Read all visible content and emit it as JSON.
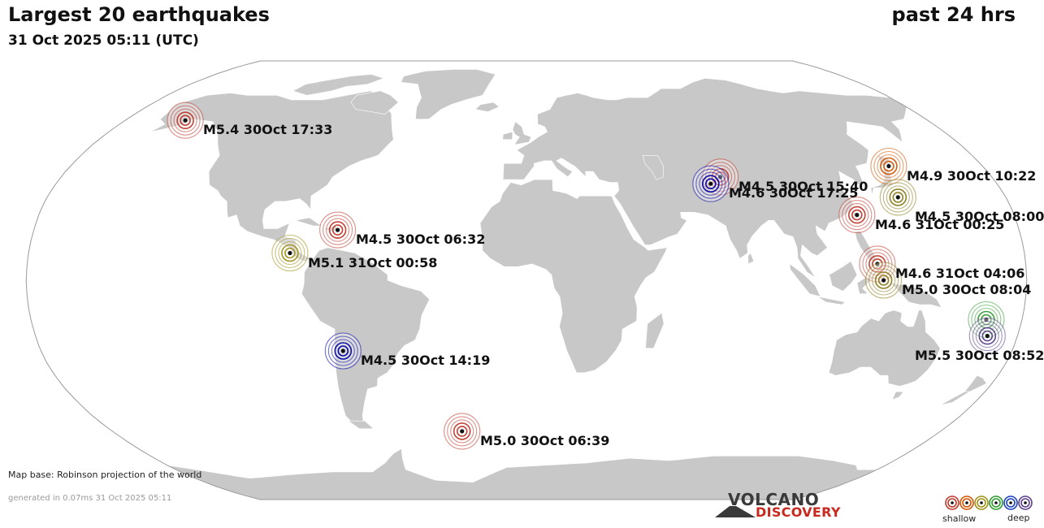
{
  "header": {
    "title": "Largest 20 earthquakes",
    "datetime": "31 Oct 2025 05:11 (UTC)",
    "period": "past 24 hrs"
  },
  "quakes": [
    {
      "label": "M5.4 30Oct 17:33",
      "lat": 59.5,
      "lon": -153.0,
      "color": "#c0392b"
    },
    {
      "label": "M4.9 30Oct 10:22",
      "lat": 42.0,
      "lon": 143.0,
      "color": "#d35400"
    },
    {
      "label": "M4.5 30Oct 15:40",
      "lat": 38.0,
      "lon": 75.0,
      "color": "#c0392b"
    },
    {
      "label": "M4.6 30Oct 17:25",
      "lat": 35.5,
      "lon": 70.5,
      "color": "#0000aa"
    },
    {
      "label": "M4.5 30Oct 08:00",
      "lat": 30.5,
      "lon": 139.5,
      "color": "#8a7a18"
    },
    {
      "label": "M4.6 31Oct 00:25",
      "lat": 24.0,
      "lon": 122.0,
      "color": "#c0392b"
    },
    {
      "label": "M4.5 30Oct 06:32",
      "lat": 18.5,
      "lon": -69.0,
      "color": "#c0392b"
    },
    {
      "label": "M5.1 31Oct 00:58",
      "lat": 10.0,
      "lon": -85.5,
      "color": "#a09018"
    },
    {
      "label": "M4.6 31Oct 04:06",
      "lat": 6.0,
      "lon": 126.5,
      "color": "#c0392b"
    },
    {
      "label": "M5.0 30Oct 08:04",
      "lat": 0.0,
      "lon": 128.5,
      "color": "#8a7a18"
    },
    {
      "label": "",
      "lat": -14.5,
      "lon": 167.0,
      "color": "#2e9a2e"
    },
    {
      "label": "M5.5 30Oct 08:52",
      "lat": -20.5,
      "lon": 169.0,
      "color": "#5a3f8a"
    },
    {
      "label": "M4.5 30Oct 14:19",
      "lat": -26.0,
      "lon": -68.0,
      "color": "#0000aa"
    },
    {
      "label": "M5.0 30Oct 06:39",
      "lat": -56.0,
      "lon": -28.0,
      "color": "#c0392b"
    }
  ],
  "footer": {
    "map_base": "Map base: Robinson projection of the world",
    "generated": "generated in 0.07ms 31 Oct 2025 05:11"
  },
  "logo": {
    "line1": "VOLCANO",
    "line2": "DISCOVERY"
  },
  "legend": {
    "shallow": "shallow",
    "deep": "deep",
    "colors": [
      "#c0392b",
      "#d35400",
      "#a09018",
      "#2e9a2e",
      "#1a3fbf",
      "#5a3f8a"
    ]
  },
  "map_colors": {
    "land": "#c8c8c8",
    "ocean": "#ffffff",
    "border": "#ffffff",
    "frame": "#9a9a9a"
  }
}
